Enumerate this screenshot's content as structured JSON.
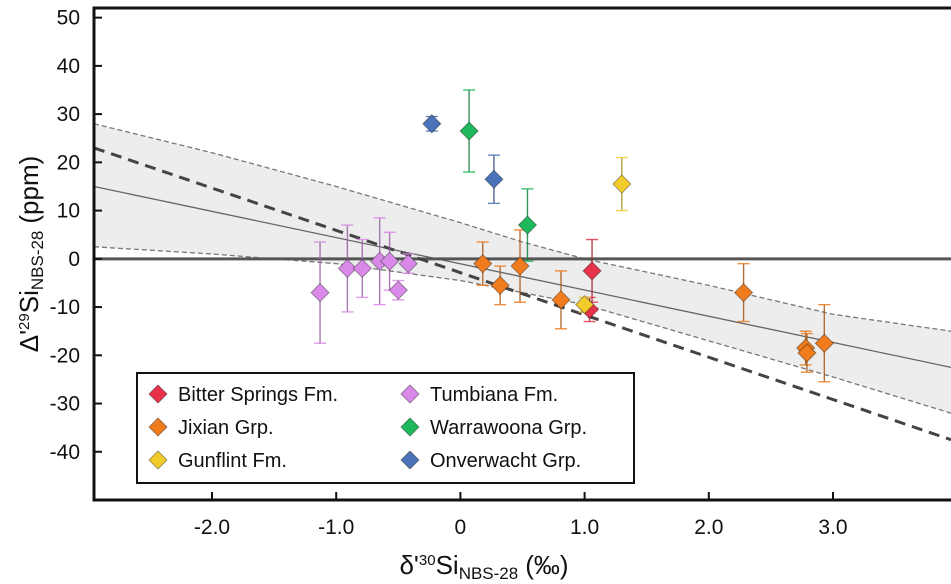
{
  "chart_data": {
    "type": "scatter",
    "xlabel": "δ'30SiNBS-28 (‰)",
    "xlabel_parts": {
      "prefix": "δ'",
      "mass": "30",
      "element": "Si",
      "subscript": "NBS-28",
      "unit": "(‰)"
    },
    "ylabel": "Δ'29SiNBS-28 (ppm)",
    "ylabel_parts": {
      "prefix": "Δ'",
      "mass": "29",
      "element": "Si",
      "subscript": "NBS-28",
      "unit": "(ppm)"
    },
    "xlim": [
      -2.95,
      3.95
    ],
    "ylim": [
      -50,
      52
    ],
    "xticks": [
      -2.0,
      -1.0,
      0.0,
      1.0,
      2.0,
      3.0
    ],
    "xtick_labels": [
      "-2.0",
      "-1.0",
      "0",
      "1.0",
      "2.0",
      "3.0"
    ],
    "yticks": [
      50,
      40,
      30,
      20,
      10,
      0,
      -10,
      -20,
      -30,
      -40
    ],
    "ytick_labels": [
      "50",
      "40",
      "30",
      "20",
      "10",
      "0",
      "-10",
      "-20",
      "-30",
      "-40"
    ],
    "grid": false,
    "legend_placement": "bottom-left",
    "reference_line": {
      "y": 0
    },
    "regression_line": {
      "x": [
        -2.95,
        3.95
      ],
      "y": [
        15.0,
        -22.5
      ]
    },
    "confidence_band": {
      "x": [
        -2.95,
        -2.0,
        -1.0,
        0.0,
        0.5,
        1.0,
        2.0,
        3.0,
        3.95
      ],
      "upper": [
        28.0,
        22.0,
        15.0,
        7.5,
        3.5,
        0.0,
        -5.5,
        -11.5,
        -15.0
      ],
      "lower": [
        2.5,
        1.0,
        -1.0,
        -4.5,
        -7.0,
        -9.5,
        -17.0,
        -24.5,
        -32.0
      ]
    },
    "trend_line_dashed": {
      "x": [
        -2.95,
        3.95
      ],
      "y": [
        23.0,
        -37.5
      ]
    },
    "series": [
      {
        "name": "Bitter Springs Fm.",
        "color": "#e8334a",
        "points": [
          {
            "x": 1.06,
            "y": -2.5,
            "yerr": 6.5
          },
          {
            "x": 1.04,
            "y": -10.5,
            "yerr": 2.5
          }
        ]
      },
      {
        "name": "Tumbiana Fm.",
        "color": "#d98ae8",
        "points": [
          {
            "x": -1.13,
            "y": -7.0,
            "yerr": 10.5
          },
          {
            "x": -0.91,
            "y": -2.0,
            "yerr": 9.0
          },
          {
            "x": -0.79,
            "y": -2.0,
            "yerr": 6.0
          },
          {
            "x": -0.65,
            "y": -0.5,
            "yerr": 9.0
          },
          {
            "x": -0.57,
            "y": -0.5,
            "yerr": 6.0
          },
          {
            "x": -0.5,
            "y": -6.5,
            "yerr": 2.0
          },
          {
            "x": -0.42,
            "y": -1.0,
            "yerr": 2.0
          }
        ]
      },
      {
        "name": "Jixian Grp.",
        "color": "#f07c1e",
        "points": [
          {
            "x": 0.18,
            "y": -1.0,
            "yerr": 4.5
          },
          {
            "x": 0.32,
            "y": -5.5,
            "yerr": 4.0
          },
          {
            "x": 0.48,
            "y": -1.5,
            "yerr": 7.5
          },
          {
            "x": 0.81,
            "y": -8.5,
            "yerr": 6.0
          },
          {
            "x": 2.28,
            "y": -7.0,
            "yerr": 6.0
          },
          {
            "x": 2.78,
            "y": -18.5,
            "yerr": 3.5
          },
          {
            "x": 2.79,
            "y": -19.5,
            "yerr": 4.0
          },
          {
            "x": 2.93,
            "y": -17.5,
            "yerr": 8.0
          }
        ]
      },
      {
        "name": "Warrawoona Grp.",
        "color": "#1fb85a",
        "points": [
          {
            "x": 0.07,
            "y": 26.5,
            "yerr": 8.5
          },
          {
            "x": 0.54,
            "y": 7.0,
            "yerr": 7.5
          }
        ]
      },
      {
        "name": "Gunflint Fm.",
        "color": "#f2cc2b",
        "points": [
          {
            "x": 1.3,
            "y": 15.5,
            "yerr": 5.5
          },
          {
            "x": 1.0,
            "y": -9.5,
            "yerr": 1.5
          }
        ]
      },
      {
        "name": "Onverwacht Grp.",
        "color": "#4a73b8",
        "points": [
          {
            "x": -0.23,
            "y": 28.0,
            "yerr": 1.5
          },
          {
            "x": 0.27,
            "y": 16.5,
            "yerr": 5.0
          }
        ]
      }
    ],
    "legend_order": [
      "Bitter Springs Fm.",
      "Tumbiana Fm.",
      "Jixian Grp.",
      "Warrawoona Grp.",
      "Gunflint Fm.",
      "Onverwacht Grp."
    ]
  }
}
